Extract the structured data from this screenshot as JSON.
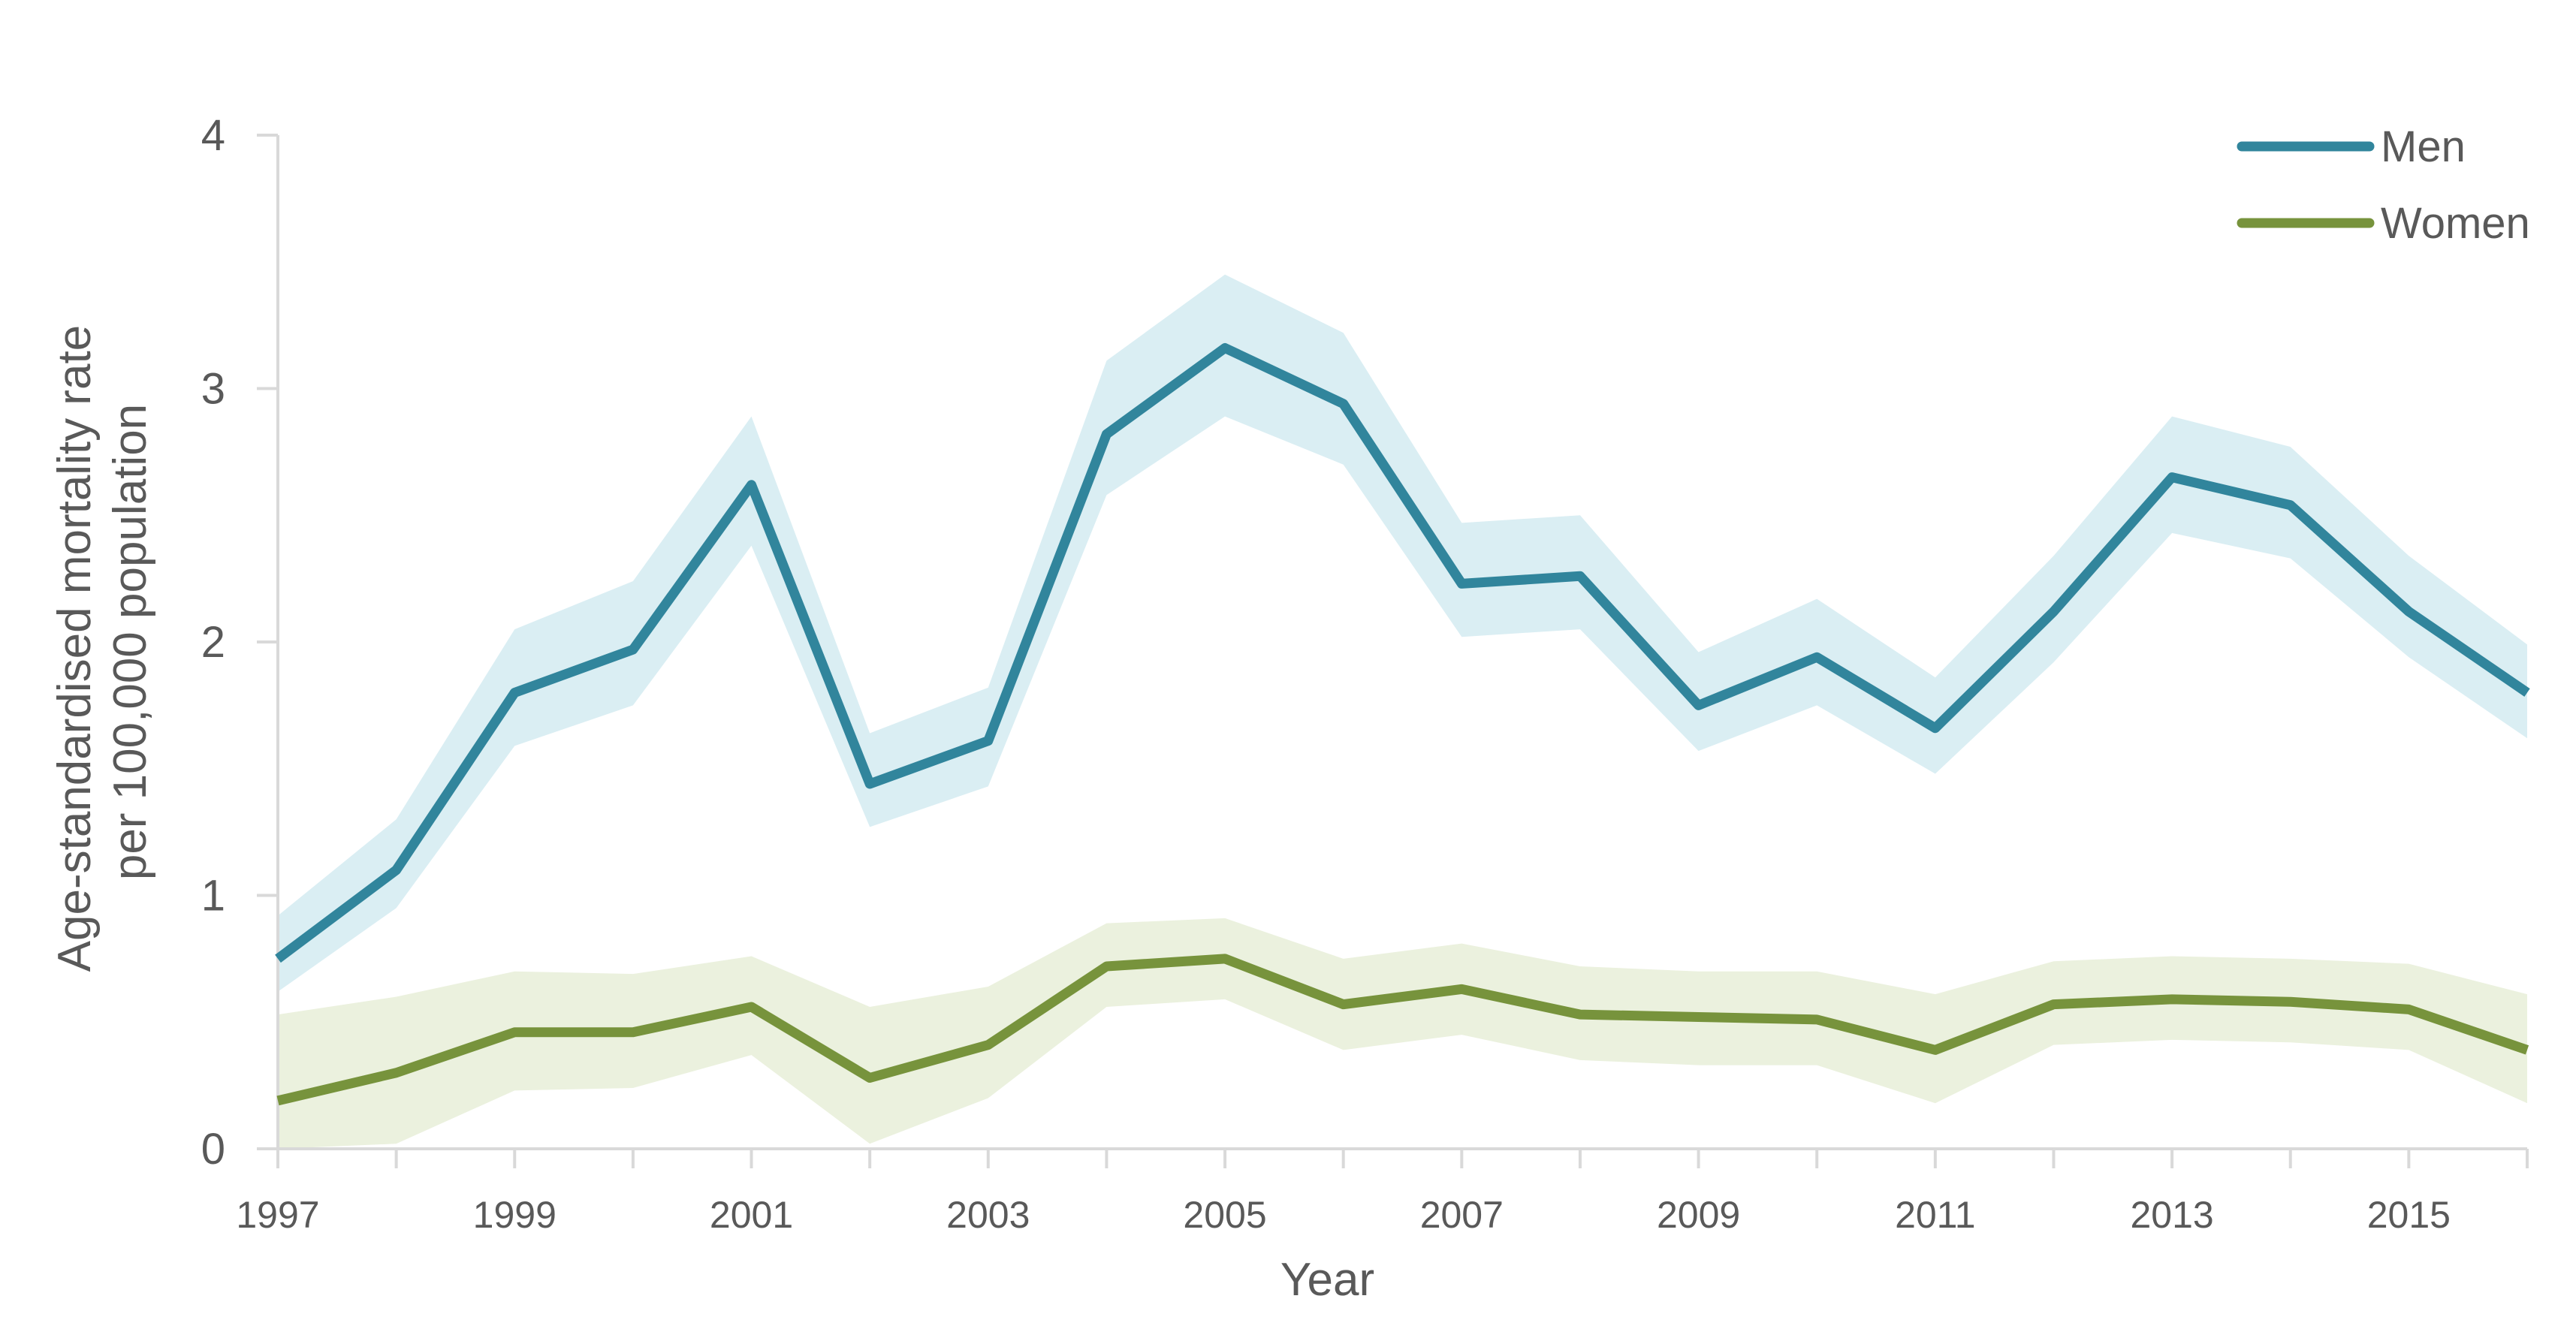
{
  "chart_data": {
    "type": "line",
    "title": "",
    "xlabel": "Year",
    "ylabel_lines": [
      "Age-standardised mortality rate",
      "per 100,000 population"
    ],
    "x": [
      1997,
      1998,
      1999,
      2000,
      2001,
      2002,
      2003,
      2004,
      2005,
      2006,
      2007,
      2008,
      2009,
      2010,
      2011,
      2012,
      2013,
      2014,
      2015,
      2016
    ],
    "x_tick_labels": [
      "1997",
      "1999",
      "2001",
      "2003",
      "2005",
      "2007",
      "2009",
      "2011",
      "2013",
      "2015"
    ],
    "y_tick_labels": [
      "0",
      "1",
      "2",
      "3",
      "4"
    ],
    "xlim": [
      1997,
      2016
    ],
    "ylim": [
      0,
      4
    ],
    "grid": false,
    "legend_position": "top-right",
    "series": [
      {
        "name": "Men",
        "color": "#31859C",
        "band_color": "#DAEEF3",
        "values": [
          0.75,
          1.1,
          1.8,
          1.97,
          2.62,
          1.44,
          1.61,
          2.82,
          3.16,
          2.94,
          2.23,
          2.26,
          1.75,
          1.94,
          1.66,
          2.12,
          2.65,
          2.54,
          2.12,
          1.8
        ],
        "lower": [
          0.62,
          0.95,
          1.59,
          1.75,
          2.38,
          1.27,
          1.43,
          2.58,
          2.89,
          2.7,
          2.02,
          2.05,
          1.57,
          1.75,
          1.48,
          1.92,
          2.43,
          2.33,
          1.94,
          1.62
        ],
        "upper": [
          0.92,
          1.3,
          2.05,
          2.24,
          2.89,
          1.64,
          1.82,
          3.11,
          3.45,
          3.22,
          2.47,
          2.5,
          1.96,
          2.17,
          1.86,
          2.34,
          2.89,
          2.77,
          2.34,
          1.99
        ]
      },
      {
        "name": "Women",
        "color": "#77933C",
        "band_color": "#EBF1DE",
        "values": [
          0.19,
          0.3,
          0.46,
          0.46,
          0.56,
          0.28,
          0.41,
          0.72,
          0.75,
          0.57,
          0.63,
          0.53,
          0.52,
          0.51,
          0.39,
          0.57,
          0.59,
          0.58,
          0.55,
          0.39
        ],
        "lower": [
          0.0,
          0.02,
          0.23,
          0.24,
          0.37,
          0.02,
          0.2,
          0.56,
          0.59,
          0.39,
          0.45,
          0.35,
          0.33,
          0.33,
          0.18,
          0.41,
          0.43,
          0.42,
          0.39,
          0.18
        ],
        "upper": [
          0.53,
          0.6,
          0.7,
          0.69,
          0.76,
          0.56,
          0.64,
          0.89,
          0.91,
          0.75,
          0.81,
          0.72,
          0.7,
          0.7,
          0.61,
          0.74,
          0.76,
          0.75,
          0.73,
          0.61
        ]
      }
    ]
  }
}
